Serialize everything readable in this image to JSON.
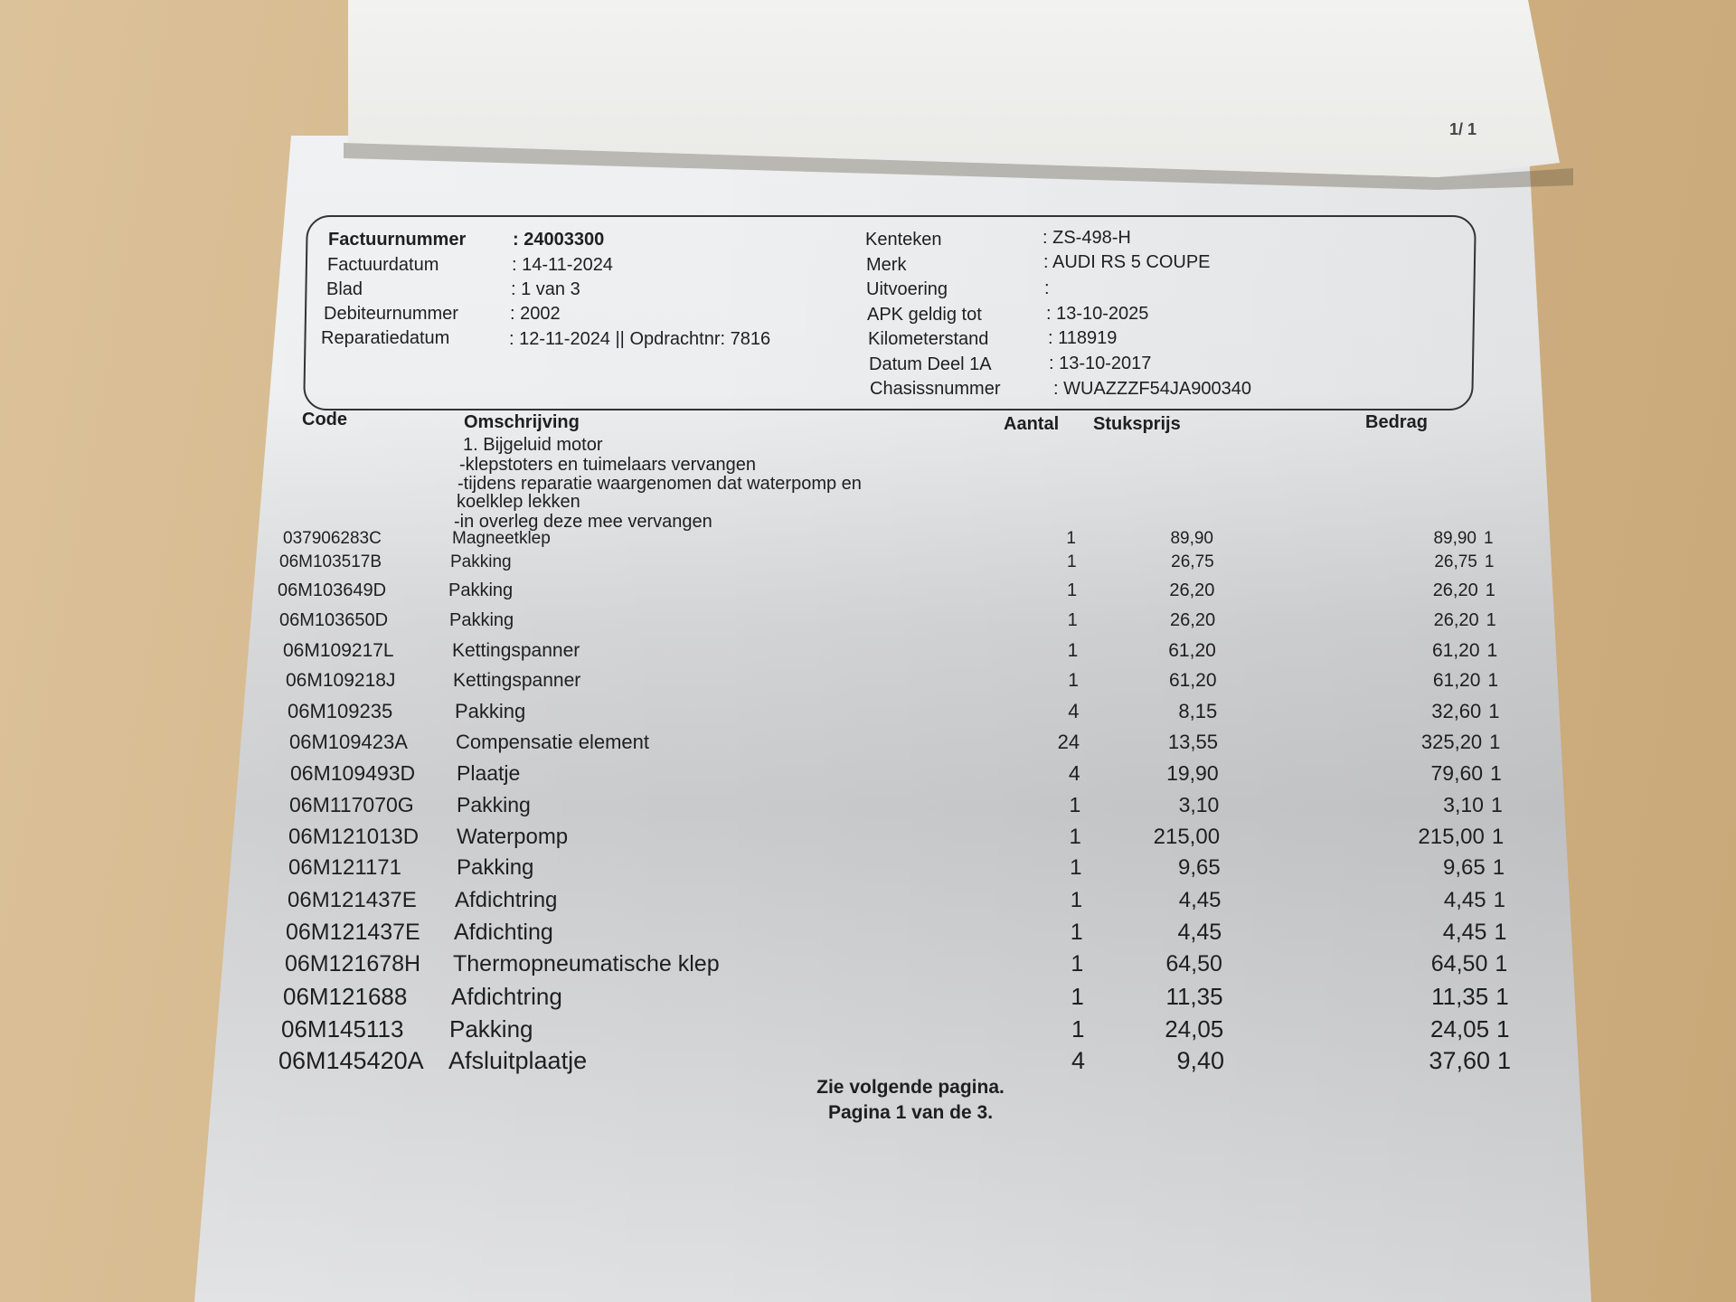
{
  "top_sheet": {
    "page_indicator": "1/ 1"
  },
  "invoice": {
    "left_fields": [
      {
        "label": "Factuurnummer",
        "value": ": 24003300"
      },
      {
        "label": "Factuurdatum",
        "value": ": 14-11-2024"
      },
      {
        "label": "Blad",
        "value": ": 1 van 3"
      },
      {
        "label": "Debiteurnummer",
        "value": ": 2002"
      },
      {
        "label": "Reparatiedatum",
        "value": ": 12-11-2024 || Opdrachtnr: 7816"
      }
    ],
    "right_fields": [
      {
        "label": "Kenteken",
        "value": ": ZS-498-H"
      },
      {
        "label": "Merk",
        "value": ": AUDI RS 5 COUPE"
      },
      {
        "label": "Uitvoering",
        "value": ":"
      },
      {
        "label": "APK geldig tot",
        "value": ": 13-10-2025"
      },
      {
        "label": "Kilometerstand",
        "value": ": 118919"
      },
      {
        "label": "Datum Deel 1A",
        "value": ": 13-10-2017"
      },
      {
        "label": "Chasissnummer",
        "value": ": WUAZZZF54JA900340"
      }
    ]
  },
  "table": {
    "headers": {
      "code": "Code",
      "description": "Omschrijving",
      "quantity": "Aantal",
      "unit_price": "Stuksprijs",
      "amount": "Bedrag"
    },
    "notes": [
      "1. Bijgeluid motor",
      "-klepstoters en tuimelaars vervangen",
      "-tijdens reparatie waargenomen dat waterpomp en",
      "koelklep lekken",
      "-in overleg deze mee vervangen"
    ],
    "rows": [
      {
        "code": "037906283C",
        "description": "Magneetklep",
        "quantity": "1",
        "unit_price": "89,90",
        "amount": "89,90",
        "flag": "1"
      },
      {
        "code": "06M103517B",
        "description": "Pakking",
        "quantity": "1",
        "unit_price": "26,75",
        "amount": "26,75",
        "flag": "1"
      },
      {
        "code": "06M103649D",
        "description": "Pakking",
        "quantity": "1",
        "unit_price": "26,20",
        "amount": "26,20",
        "flag": "1"
      },
      {
        "code": "06M103650D",
        "description": "Pakking",
        "quantity": "1",
        "unit_price": "26,20",
        "amount": "26,20",
        "flag": "1"
      },
      {
        "code": "06M109217L",
        "description": "Kettingspanner",
        "quantity": "1",
        "unit_price": "61,20",
        "amount": "61,20",
        "flag": "1"
      },
      {
        "code": "06M109218J",
        "description": "Kettingspanner",
        "quantity": "1",
        "unit_price": "61,20",
        "amount": "61,20",
        "flag": "1"
      },
      {
        "code": "06M109235",
        "description": "Pakking",
        "quantity": "4",
        "unit_price": "8,15",
        "amount": "32,60",
        "flag": "1"
      },
      {
        "code": "06M109423A",
        "description": "Compensatie element",
        "quantity": "24",
        "unit_price": "13,55",
        "amount": "325,20",
        "flag": "1"
      },
      {
        "code": "06M109493D",
        "description": "Plaatje",
        "quantity": "4",
        "unit_price": "19,90",
        "amount": "79,60",
        "flag": "1"
      },
      {
        "code": "06M117070G",
        "description": "Pakking",
        "quantity": "1",
        "unit_price": "3,10",
        "amount": "3,10",
        "flag": "1"
      },
      {
        "code": "06M121013D",
        "description": "Waterpomp",
        "quantity": "1",
        "unit_price": "215,00",
        "amount": "215,00",
        "flag": "1"
      },
      {
        "code": "06M121171",
        "description": "Pakking",
        "quantity": "1",
        "unit_price": "9,65",
        "amount": "9,65",
        "flag": "1"
      },
      {
        "code": "06M121437E",
        "description": "Afdichtring",
        "quantity": "1",
        "unit_price": "4,45",
        "amount": "4,45",
        "flag": "1"
      },
      {
        "code": "06M121437E",
        "description": "Afdichting",
        "quantity": "1",
        "unit_price": "4,45",
        "amount": "4,45",
        "flag": "1"
      },
      {
        "code": "06M121678H",
        "description": "Thermopneumatische klep",
        "quantity": "1",
        "unit_price": "64,50",
        "amount": "64,50",
        "flag": "1"
      },
      {
        "code": "06M121688",
        "description": "Afdichtring",
        "quantity": "1",
        "unit_price": "11,35",
        "amount": "11,35",
        "flag": "1"
      },
      {
        "code": "06M145113",
        "description": "Pakking",
        "quantity": "1",
        "unit_price": "24,05",
        "amount": "24,05",
        "flag": "1"
      },
      {
        "code": "06M145420A",
        "description": "Afsluitplaatje",
        "quantity": "4",
        "unit_price": "9,40",
        "amount": "37,60",
        "flag": "1"
      }
    ]
  },
  "footer": {
    "continue_note": "Zie volgende pagina.",
    "page_note": "Pagina 1 van de 3."
  }
}
